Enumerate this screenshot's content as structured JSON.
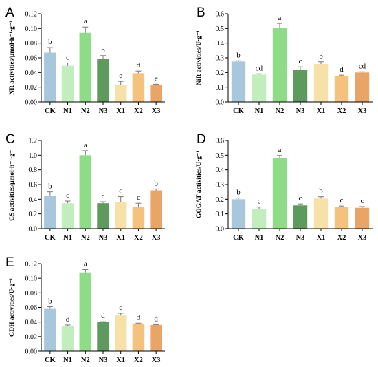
{
  "chart_data": [
    {
      "panel": "A",
      "type": "bar",
      "ylabel": "NR activities/μmol·h⁻¹·g⁻¹",
      "ylim": [
        0,
        0.12
      ],
      "yticks": [
        "0.00",
        "0.02",
        "0.04",
        "0.06",
        "0.08",
        "0.10",
        "0.12"
      ],
      "categories": [
        "CK",
        "N1",
        "N2",
        "N3",
        "X1",
        "X2",
        "X3"
      ],
      "values": [
        0.067,
        0.049,
        0.094,
        0.059,
        0.023,
        0.039,
        0.023
      ],
      "errors": [
        0.007,
        0.004,
        0.008,
        0.004,
        0.005,
        0.003,
        0.001
      ],
      "letters": [
        "b",
        "c",
        "a",
        "b",
        "e",
        "d",
        "e"
      ],
      "grid": false
    },
    {
      "panel": "B",
      "type": "bar",
      "ylabel": "NiR activities/U·g⁻¹",
      "ylim": [
        0,
        0.6
      ],
      "yticks": [
        "0.0",
        "0.1",
        "0.2",
        "0.3",
        "0.4",
        "0.5",
        "0.6"
      ],
      "categories": [
        "CK",
        "N1",
        "N2",
        "N3",
        "X1",
        "X2",
        "X3"
      ],
      "values": [
        0.275,
        0.186,
        0.504,
        0.218,
        0.258,
        0.177,
        0.2
      ],
      "errors": [
        0.005,
        0.005,
        0.03,
        0.02,
        0.015,
        0.005,
        0.005
      ],
      "letters": [
        "b",
        "cd",
        "a",
        "c",
        "b",
        "d",
        "cd"
      ],
      "grid": false
    },
    {
      "panel": "C",
      "type": "bar",
      "ylabel": "CS activities/μmol·h⁻¹·g⁻¹",
      "ylim": [
        0,
        1.2
      ],
      "yticks": [
        "0.0",
        "0.2",
        "0.4",
        "0.6",
        "0.8",
        "1.0",
        "1.2"
      ],
      "categories": [
        "CK",
        "N1",
        "N2",
        "N3",
        "X1",
        "X2",
        "X3"
      ],
      "values": [
        0.45,
        0.345,
        1.0,
        0.345,
        0.365,
        0.295,
        0.52
      ],
      "errors": [
        0.05,
        0.03,
        0.06,
        0.02,
        0.07,
        0.05,
        0.02
      ],
      "letters": [
        "b",
        "c",
        "a",
        "c",
        "c",
        "c",
        "b"
      ],
      "grid": false
    },
    {
      "panel": "D",
      "type": "bar",
      "ylabel": "GOGAT activities/U·g⁻¹",
      "ylim": [
        0,
        0.6
      ],
      "yticks": [
        "0.0",
        "0.1",
        "0.2",
        "0.3",
        "0.4",
        "0.5",
        "0.6"
      ],
      "categories": [
        "CK",
        "N1",
        "N2",
        "N3",
        "X1",
        "X2",
        "X3"
      ],
      "values": [
        0.2,
        0.135,
        0.48,
        0.158,
        0.205,
        0.15,
        0.142
      ],
      "errors": [
        0.008,
        0.012,
        0.018,
        0.01,
        0.012,
        0.004,
        0.008
      ],
      "letters": [
        "b",
        "c",
        "a",
        "c",
        "b",
        "c",
        "c"
      ],
      "grid": false
    },
    {
      "panel": "E",
      "type": "bar",
      "ylabel": "GDH activities/U·g⁻¹",
      "ylim": [
        0,
        0.12
      ],
      "yticks": [
        "0.00",
        "0.02",
        "0.04",
        "0.06",
        "0.08",
        "0.10",
        "0.12"
      ],
      "categories": [
        "CK",
        "N1",
        "N2",
        "N3",
        "X1",
        "X2",
        "X3"
      ],
      "values": [
        0.058,
        0.035,
        0.108,
        0.04,
        0.049,
        0.038,
        0.036
      ],
      "errors": [
        0.003,
        0.001,
        0.004,
        0.0005,
        0.003,
        0.0005,
        0.0005
      ],
      "letters": [
        "b",
        "d",
        "a",
        "d",
        "c",
        "d",
        "d"
      ],
      "grid": false
    }
  ],
  "colors": [
    "#a9c7dc",
    "#c2eebe",
    "#8fdc86",
    "#5e9a5e",
    "#f6e2a8",
    "#f4c27c",
    "#e8a566"
  ]
}
